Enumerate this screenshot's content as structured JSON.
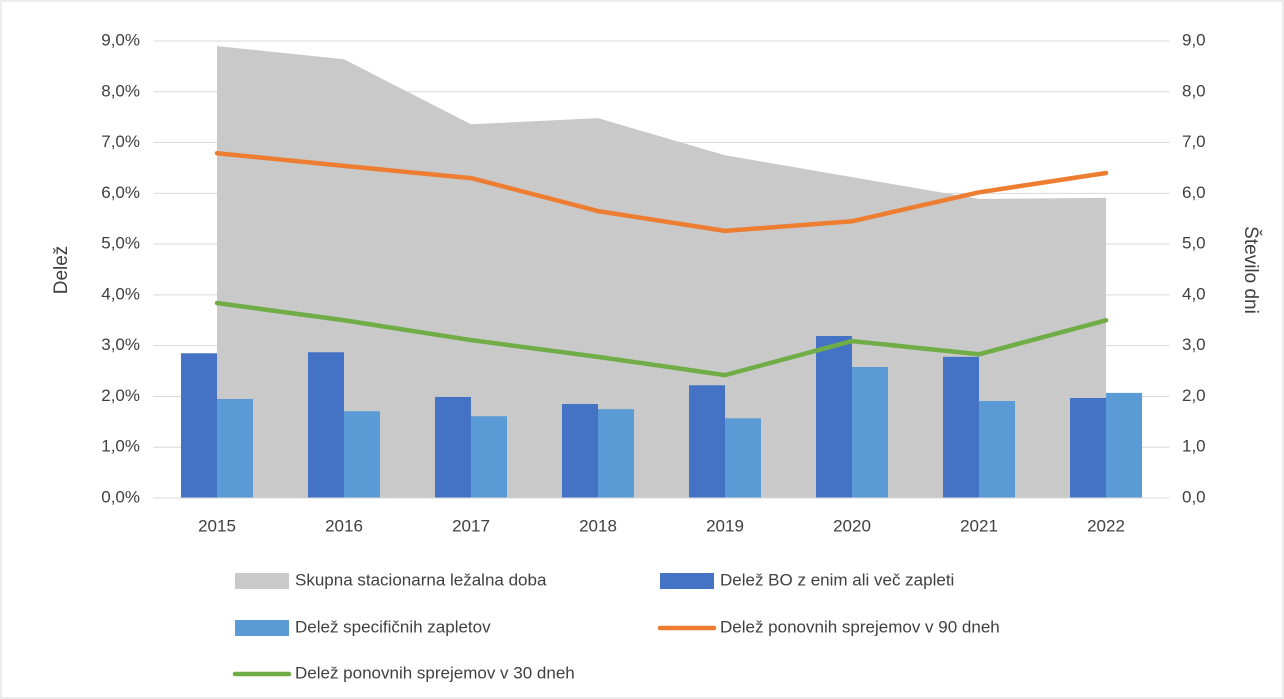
{
  "chart_data": {
    "type": "combo",
    "categories": [
      "2015",
      "2016",
      "2017",
      "2018",
      "2019",
      "2020",
      "2021",
      "2022"
    ],
    "y_label": "Delež",
    "y2_label": "Število dni",
    "ylim": [
      0,
      9
    ],
    "yticks": [
      {
        "value": 0,
        "label": "0,0%"
      },
      {
        "value": 1,
        "label": "1,0%"
      },
      {
        "value": 2,
        "label": "2,0%"
      },
      {
        "value": 3,
        "label": "3,0%"
      },
      {
        "value": 4,
        "label": "4,0%"
      },
      {
        "value": 5,
        "label": "5,0%"
      },
      {
        "value": 6,
        "label": "6,0%"
      },
      {
        "value": 7,
        "label": "7,0%"
      },
      {
        "value": 8,
        "label": "8,0%"
      },
      {
        "value": 9,
        "label": "9,0%"
      }
    ],
    "y2lim": [
      0,
      9
    ],
    "y2ticks": [
      {
        "value": 0,
        "label": "0,0"
      },
      {
        "value": 1,
        "label": "1,0"
      },
      {
        "value": 2,
        "label": "2,0"
      },
      {
        "value": 3,
        "label": "3,0"
      },
      {
        "value": 4,
        "label": "4,0"
      },
      {
        "value": 5,
        "label": "5,0"
      },
      {
        "value": 6,
        "label": "6,0"
      },
      {
        "value": 7,
        "label": "7,0"
      },
      {
        "value": 8,
        "label": "8,0"
      },
      {
        "value": 9,
        "label": "9,0"
      }
    ],
    "grid": true,
    "legend": "bottom",
    "series": [
      {
        "name": "Skupna stacionarna ležalna doba",
        "type": "area",
        "axis": "y2",
        "color": "#c9c9c9",
        "values": [
          8.9,
          8.64,
          7.36,
          7.48,
          6.75,
          6.32,
          5.89,
          5.91
        ]
      },
      {
        "name": "Delež BO z enim ali več zapleti",
        "type": "bar",
        "color": "#4472c4",
        "values": [
          2.85,
          2.87,
          1.99,
          1.85,
          2.22,
          3.19,
          2.78,
          1.97
        ]
      },
      {
        "name": "Delež specifičnih zapletov",
        "type": "bar",
        "color": "#5b9bd5",
        "values": [
          1.95,
          1.71,
          1.61,
          1.75,
          1.57,
          2.58,
          1.91,
          2.07
        ]
      },
      {
        "name": "Delež ponovnih sprejemov v 90 dneh",
        "type": "line",
        "color": "#ed7d31",
        "values": [
          6.79,
          6.54,
          6.3,
          5.65,
          5.26,
          5.45,
          6.02,
          6.4
        ]
      },
      {
        "name": "Delež ponovnih sprejemov v 30 dneh",
        "type": "line",
        "color": "#70ad47",
        "values": [
          3.84,
          3.5,
          3.11,
          2.78,
          2.42,
          3.09,
          2.83,
          3.5
        ]
      }
    ]
  }
}
